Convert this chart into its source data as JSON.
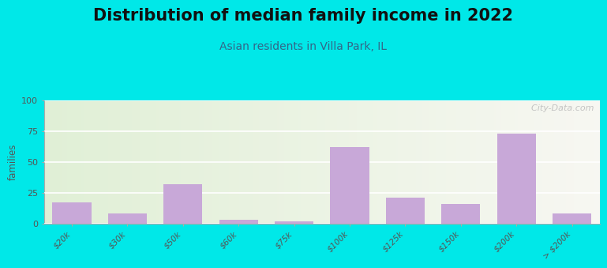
{
  "title": "Distribution of median family income in 2022",
  "subtitle": "Asian residents in Villa Park, IL",
  "categories": [
    "$20k",
    "$30k",
    "$50k",
    "$60k",
    "$75k",
    "$100k",
    "$125k",
    "$150k",
    "$200k",
    "> $200k"
  ],
  "values": [
    17,
    8,
    32,
    3,
    2,
    62,
    21,
    16,
    73,
    8
  ],
  "bar_color": "#c8a8d8",
  "bg_outer": "#00e8e8",
  "ylabel": "families",
  "ylim": [
    0,
    100
  ],
  "yticks": [
    0,
    25,
    50,
    75,
    100
  ],
  "title_fontsize": 15,
  "subtitle_fontsize": 10,
  "watermark": "  City-Data.com"
}
